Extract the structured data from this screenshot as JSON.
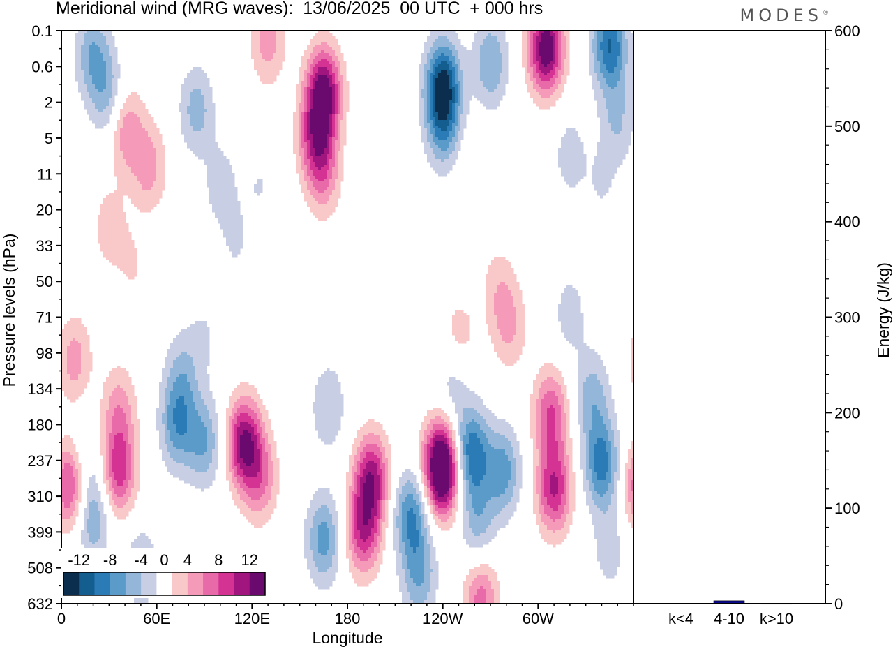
{
  "page": {
    "title": "Meridional wind (MRG waves):  13/06/2025  00 UTC  + 000 hrs",
    "brand": "MODES",
    "brand_mark": "®"
  },
  "chart_data": [
    {
      "type": "heatmap",
      "title": "Meridional wind (MRG waves):  13/06/2025  00 UTC  + 000 hrs",
      "xlabel": "Longitude",
      "ylabel": "Pressure levels (hPa)",
      "x_ticks": [
        "0",
        "60E",
        "120E",
        "180",
        "120W",
        "60W"
      ],
      "x_tick_values": [
        0,
        60,
        120,
        180,
        240,
        300
      ],
      "xlim": [
        0,
        360
      ],
      "y_ticks": [
        "0.1",
        "0.6",
        "2",
        "5",
        "11",
        "20",
        "33",
        "50",
        "71",
        "98",
        "134",
        "180",
        "237",
        "310",
        "399",
        "508",
        "632"
      ],
      "y_scale": "pressure levels (reversed, 0.1 at top)",
      "colorbar": {
        "labels": [
          "-12",
          "-8",
          "-4",
          "0",
          "4",
          "8",
          "12"
        ],
        "levels": [
          -14,
          -12,
          -10,
          -8,
          -6,
          -4,
          -2,
          2,
          4,
          6,
          8,
          10,
          12,
          14
        ],
        "colors": [
          "#0b2e4f",
          "#135d8f",
          "#2a7bb6",
          "#5b9bc9",
          "#94b6d8",
          "#c8cee4",
          "#ffffff",
          "#f9c8c8",
          "#f59ab8",
          "#e86aa8",
          "#d43393",
          "#a1157f",
          "#6b0a6e"
        ]
      },
      "blobs": [
        {
          "lon": 5,
          "lev": 12.7,
          "v": 9
        },
        {
          "lon": 8,
          "lev": 9.2,
          "v": 5
        },
        {
          "lon": 20,
          "lev": 13.6,
          "v": -6
        },
        {
          "lon": 36,
          "lev": 12.3,
          "v": 9
        },
        {
          "lon": 36,
          "lev": 10.6,
          "v": 5
        },
        {
          "lon": 16,
          "lev": 11.8,
          "v": -3
        },
        {
          "lon": 50,
          "lev": 15.0,
          "v": -4
        },
        {
          "lon": 73,
          "lev": 11.0,
          "v": -7
        },
        {
          "lon": 90,
          "lev": 11.5,
          "v": -6
        },
        {
          "lon": 76,
          "lev": 9.6,
          "v": -4
        },
        {
          "lon": 115,
          "lev": 11.5,
          "v": 12
        },
        {
          "lon": 125,
          "lev": 12.5,
          "v": 6
        },
        {
          "lon": 165,
          "lev": 14.2,
          "v": -7
        },
        {
          "lon": 168,
          "lev": 10.5,
          "v": -4
        },
        {
          "lon": 195,
          "lev": 12.5,
          "v": 11
        },
        {
          "lon": 190,
          "lev": 14.0,
          "v": 9
        },
        {
          "lon": 220,
          "lev": 13.5,
          "v": -8
        },
        {
          "lon": 225,
          "lev": 15.2,
          "v": -6
        },
        {
          "lon": 240,
          "lev": 12.3,
          "v": 14
        },
        {
          "lon": 237,
          "lev": 12.0,
          "v": 5
        },
        {
          "lon": 258,
          "lev": 11.8,
          "v": -10
        },
        {
          "lon": 262,
          "lev": 13.8,
          "v": -5
        },
        {
          "lon": 278,
          "lev": 12.3,
          "v": -7
        },
        {
          "lon": 264,
          "lev": 15.8,
          "v": 7
        },
        {
          "lon": 247,
          "lev": 9.7,
          "v": -4
        },
        {
          "lon": 310,
          "lev": 12.8,
          "v": 10
        },
        {
          "lon": 308,
          "lev": 10.7,
          "v": 8
        },
        {
          "lon": 340,
          "lev": 12.1,
          "v": -9
        },
        {
          "lon": 334,
          "lev": 10.2,
          "v": -5
        },
        {
          "lon": 345,
          "lev": 14.5,
          "v": -3
        },
        {
          "lon": 282,
          "lev": 8.3,
          "v": 4
        },
        {
          "lon": 250,
          "lev": 8.7,
          "v": 4
        },
        {
          "lon": 275,
          "lev": 7.2,
          "v": 3
        },
        {
          "lon": 320,
          "lev": 7.9,
          "v": -3
        },
        {
          "lon": 200,
          "lev": 8.0,
          "v": 2
        },
        {
          "lon": 90,
          "lev": 8.5,
          "v": -2
        },
        {
          "lon": 165,
          "lev": 1.7,
          "v": 13
        },
        {
          "lon": 160,
          "lev": 3.0,
          "v": 8
        },
        {
          "lon": 165,
          "lev": 4.0,
          "v": 5
        },
        {
          "lon": 240,
          "lev": 1.5,
          "v": -12
        },
        {
          "lon": 270,
          "lev": 0.9,
          "v": -6
        },
        {
          "lon": 305,
          "lev": 0.5,
          "v": 14
        },
        {
          "lon": 345,
          "lev": 0.4,
          "v": -10
        },
        {
          "lon": 30,
          "lev": 1.9,
          "v": -5
        },
        {
          "lon": 85,
          "lev": 2.2,
          "v": -5
        },
        {
          "lon": 40,
          "lev": 2.7,
          "v": 6
        },
        {
          "lon": 240,
          "lev": 2.7,
          "v": -6
        },
        {
          "lon": 100,
          "lev": 4.3,
          "v": -3
        },
        {
          "lon": 55,
          "lev": 3.8,
          "v": 5
        },
        {
          "lon": 20,
          "lev": 0.7,
          "v": -6
        },
        {
          "lon": 130,
          "lev": 0.3,
          "v": 5
        },
        {
          "lon": 350,
          "lev": 2.5,
          "v": -4
        },
        {
          "lon": 320,
          "lev": 3.5,
          "v": -3
        },
        {
          "lon": 340,
          "lev": 4.3,
          "v": -2
        },
        {
          "lon": 30,
          "lev": 5.5,
          "v": 3
        },
        {
          "lon": 125,
          "lev": 4.3,
          "v": -2
        },
        {
          "lon": 260,
          "lev": 4.3,
          "v": 2
        },
        {
          "lon": 45,
          "lev": 6.6,
          "v": 2
        },
        {
          "lon": 110,
          "lev": 6.0,
          "v": -2
        }
      ]
    },
    {
      "type": "bar",
      "ylabel": "Energy (J/kg)",
      "categories": [
        "k<4",
        "4-10",
        "k>10"
      ],
      "values": [
        0.5,
        3,
        0.2
      ],
      "ylim": [
        0,
        600
      ],
      "y_ticks": [
        "0",
        "100",
        "200",
        "300",
        "400",
        "500",
        "600"
      ]
    }
  ]
}
